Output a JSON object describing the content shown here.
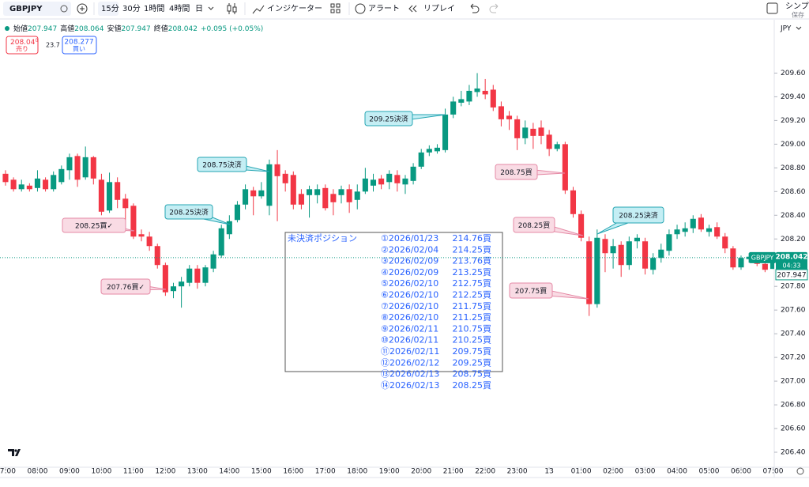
{
  "toolbar": {
    "symbol": "GBPJPY",
    "intervals": [
      "15分",
      "30分",
      "1時間",
      "4時間",
      "日"
    ],
    "indicators": "インジケーター",
    "alert": "アラート",
    "replay": "リプレイ",
    "layout": "シンプ",
    "save": "保存"
  },
  "legend": {
    "open": "始値",
    "high": "高値",
    "low": "安値",
    "close": "終値",
    "change": "+0.095 (+0.05%)"
  },
  "trade": {
    "sell_price": "208.04",
    "sell_pip": "0",
    "sell_label": "売り",
    "spread": "23.7",
    "buy_price": "208.277",
    "buy_label": "買い"
  },
  "positions": {
    "title": "未決済ポジション",
    "rows": [
      [
        "①2026/01/23",
        "214.76買"
      ],
      [
        "②2026/02/04",
        "214.25買"
      ],
      [
        "③2026/02/09",
        "213.76買"
      ],
      [
        "④2026/02/09",
        "213.25買"
      ],
      [
        "⑤2026/02/10",
        "212.75買"
      ],
      [
        "⑥2026/02/10",
        "212.25買"
      ],
      [
        "⑦2026/02/10",
        "211.75買"
      ],
      [
        "⑧2026/02/10",
        "211.25買"
      ],
      [
        "⑨2026/02/11",
        "210.75買"
      ],
      [
        "⑩2026/02/11",
        "210.25買"
      ],
      [
        "⑪2026/02/11",
        "209.75買"
      ],
      [
        "⑫2026/02/12",
        "209.25買"
      ],
      [
        "⑬2026/02/13",
        "208.75買"
      ],
      [
        "⑭2026/02/13",
        "208.25買"
      ]
    ]
  },
  "chart_data": {
    "type": "candlestick",
    "symbol_tag": "GBPJPY",
    "currency": "JPY",
    "countdown": "04:33",
    "up_color": "#089981",
    "down_color": "#f23645",
    "grid": false,
    "open": [
      208.75,
      208.7,
      208.62,
      208.65,
      208.63,
      208.7,
      208.62,
      208.68,
      208.78,
      208.9,
      208.72,
      208.89,
      208.7,
      208.44,
      208.68,
      208.54,
      208.48,
      208.24,
      208.22,
      208.14,
      207.98,
      207.76,
      207.8,
      207.83,
      207.95,
      207.83,
      207.95,
      208.06,
      208.24,
      208.36,
      208.49,
      208.61,
      208.56,
      208.48,
      208.83,
      208.75,
      208.74,
      208.58,
      208.57,
      208.57,
      208.63,
      208.58,
      208.57,
      208.62,
      208.53,
      208.6,
      208.65,
      208.71,
      208.68,
      208.74,
      208.66,
      208.69,
      208.81,
      208.93,
      208.94,
      208.95,
      209.25,
      209.35,
      209.36,
      209.44,
      209.45,
      209.46,
      209.32,
      209.24,
      209.21,
      209.05,
      209.13,
      209.14,
      209.08,
      208.96,
      209.0,
      208.61,
      208.41,
      208.18,
      207.65,
      208.2,
      208.08,
      208.15,
      207.98,
      208.18,
      208.18,
      207.94,
      208.04,
      208.1,
      208.24,
      208.26,
      208.29,
      208.38,
      208.26,
      208.3,
      208.22,
      208.12,
      207.96,
      208.03,
      208.05,
      207.99,
      207.947
    ],
    "high": [
      208.78,
      208.72,
      208.7,
      208.67,
      208.78,
      208.72,
      208.77,
      208.82,
      208.92,
      208.92,
      208.98,
      208.9,
      208.75,
      208.76,
      208.72,
      208.58,
      208.5,
      208.28,
      208.26,
      208.16,
      208.0,
      207.83,
      207.88,
      207.98,
      207.98,
      207.98,
      208.1,
      208.32,
      208.4,
      208.52,
      208.66,
      208.64,
      208.68,
      208.87,
      208.95,
      208.78,
      208.77,
      208.62,
      208.65,
      208.66,
      208.66,
      208.62,
      208.65,
      208.66,
      208.66,
      208.8,
      208.75,
      208.74,
      208.78,
      208.78,
      208.74,
      208.84,
      208.96,
      208.99,
      209.0,
      209.3,
      209.4,
      209.45,
      209.5,
      209.6,
      209.55,
      209.5,
      209.36,
      209.28,
      209.24,
      209.2,
      209.18,
      209.2,
      209.12,
      209.02,
      209.02,
      208.64,
      208.44,
      208.22,
      208.28,
      208.24,
      208.2,
      208.18,
      208.22,
      208.24,
      208.21,
      208.08,
      208.16,
      208.28,
      208.32,
      208.34,
      208.4,
      208.41,
      208.32,
      208.34,
      208.25,
      208.14,
      208.06,
      208.08,
      208.08,
      208.02,
      208.064
    ],
    "low": [
      208.65,
      208.6,
      208.6,
      208.6,
      208.6,
      208.6,
      208.6,
      208.66,
      208.7,
      208.64,
      208.7,
      208.66,
      208.4,
      208.42,
      208.46,
      208.36,
      208.2,
      208.18,
      208.1,
      207.95,
      207.72,
      207.7,
      207.62,
      207.8,
      207.78,
      207.8,
      207.92,
      208.04,
      208.2,
      208.34,
      208.45,
      208.4,
      208.54,
      208.4,
      208.35,
      208.6,
      208.45,
      208.45,
      208.38,
      208.5,
      208.44,
      208.4,
      208.5,
      208.42,
      208.45,
      208.58,
      208.6,
      208.62,
      208.62,
      208.6,
      208.58,
      208.66,
      208.79,
      208.9,
      208.92,
      208.93,
      209.22,
      209.32,
      209.33,
      209.4,
      209.38,
      209.28,
      209.15,
      209.12,
      208.95,
      209.0,
      208.96,
      209.0,
      208.9,
      208.94,
      208.58,
      208.38,
      208.18,
      207.55,
      207.62,
      207.92,
      207.95,
      207.88,
      207.94,
      208.12,
      207.9,
      207.9,
      208.0,
      208.06,
      208.2,
      208.22,
      208.25,
      208.26,
      208.22,
      208.2,
      208.08,
      207.94,
      207.94,
      208.0,
      207.97,
      207.92,
      207.947
    ],
    "close": [
      208.68,
      208.62,
      208.66,
      208.62,
      208.71,
      208.62,
      208.74,
      208.79,
      208.89,
      208.7,
      208.89,
      208.71,
      208.43,
      208.68,
      208.53,
      208.46,
      208.22,
      208.22,
      208.14,
      207.98,
      207.75,
      207.8,
      207.84,
      207.95,
      207.83,
      207.96,
      208.07,
      208.29,
      208.35,
      208.49,
      208.62,
      208.56,
      208.61,
      208.83,
      208.73,
      208.67,
      208.49,
      208.49,
      208.62,
      208.62,
      208.46,
      208.51,
      208.62,
      208.51,
      208.6,
      208.71,
      208.7,
      208.66,
      208.75,
      208.67,
      208.71,
      208.81,
      208.93,
      208.96,
      208.97,
      209.25,
      209.36,
      209.38,
      209.45,
      209.47,
      209.42,
      209.31,
      209.21,
      209.21,
      209.05,
      209.14,
      209.07,
      209.07,
      208.96,
      209.0,
      208.61,
      208.41,
      208.21,
      207.65,
      208.21,
      208.08,
      208.14,
      207.98,
      208.18,
      208.21,
      207.95,
      208.04,
      208.11,
      208.24,
      208.28,
      208.29,
      208.37,
      208.28,
      208.29,
      208.22,
      208.12,
      207.96,
      208.04,
      208.05,
      207.99,
      207.94,
      208.042
    ],
    "xlim": [
      -0.69,
      96.15
    ],
    "ylim": [
      206.28,
      210.05
    ],
    "xticks": [
      {
        "value": 0,
        "label": "07:00"
      },
      {
        "value": 4,
        "label": "08:00"
      },
      {
        "value": 8,
        "label": "09:00"
      },
      {
        "value": 12,
        "label": "10:00"
      },
      {
        "value": 16,
        "label": "11:00"
      },
      {
        "value": 20,
        "label": "12:00"
      },
      {
        "value": 24,
        "label": "13:00"
      },
      {
        "value": 28,
        "label": "14:00"
      },
      {
        "value": 32,
        "label": "15:00"
      },
      {
        "value": 36,
        "label": "16:00"
      },
      {
        "value": 40,
        "label": "17:00"
      },
      {
        "value": 44,
        "label": "18:00"
      },
      {
        "value": 48,
        "label": "19:00"
      },
      {
        "value": 52,
        "label": "20:00"
      },
      {
        "value": 56,
        "label": "21:00"
      },
      {
        "value": 60,
        "label": "22:00"
      },
      {
        "value": 64,
        "label": "23:00"
      },
      {
        "value": 68,
        "label": "13"
      },
      {
        "value": 72,
        "label": "01:00"
      },
      {
        "value": 76,
        "label": "02:00"
      },
      {
        "value": 80,
        "label": "03:00"
      },
      {
        "value": 84,
        "label": "04:00"
      },
      {
        "value": 88,
        "label": "05:00"
      },
      {
        "value": 92,
        "label": "06:00"
      },
      {
        "value": 96,
        "label": "07:00"
      }
    ],
    "yticks": [
      {
        "value": 206.4,
        "label": "206.40"
      },
      {
        "value": 206.6,
        "label": "206.60"
      },
      {
        "value": 206.8,
        "label": "206.80"
      },
      {
        "value": 207.0,
        "label": "207.00"
      },
      {
        "value": 207.2,
        "label": "207.20"
      },
      {
        "value": 207.4,
        "label": "207.40"
      },
      {
        "value": 207.6,
        "label": "207.60"
      },
      {
        "value": 207.8,
        "label": "207.80"
      },
      {
        "value": 208.0,
        "label": "208.00"
      },
      {
        "value": 208.2,
        "label": "208.20"
      },
      {
        "value": 208.4,
        "label": "208.40"
      },
      {
        "value": 208.6,
        "label": "208.60"
      },
      {
        "value": 208.8,
        "label": "208.80"
      },
      {
        "value": 209.0,
        "label": "209.00"
      },
      {
        "value": 209.2,
        "label": "209.20"
      },
      {
        "value": 209.4,
        "label": "209.40"
      },
      {
        "value": 209.6,
        "label": "209.60"
      }
    ],
    "annotations": [
      "209.25決済",
      "208.75決済",
      "208.25決済",
      "208.25買✓",
      "207.76買✓",
      "208.75買",
      "208.25買",
      "208.25決済",
      "207.75買"
    ]
  }
}
